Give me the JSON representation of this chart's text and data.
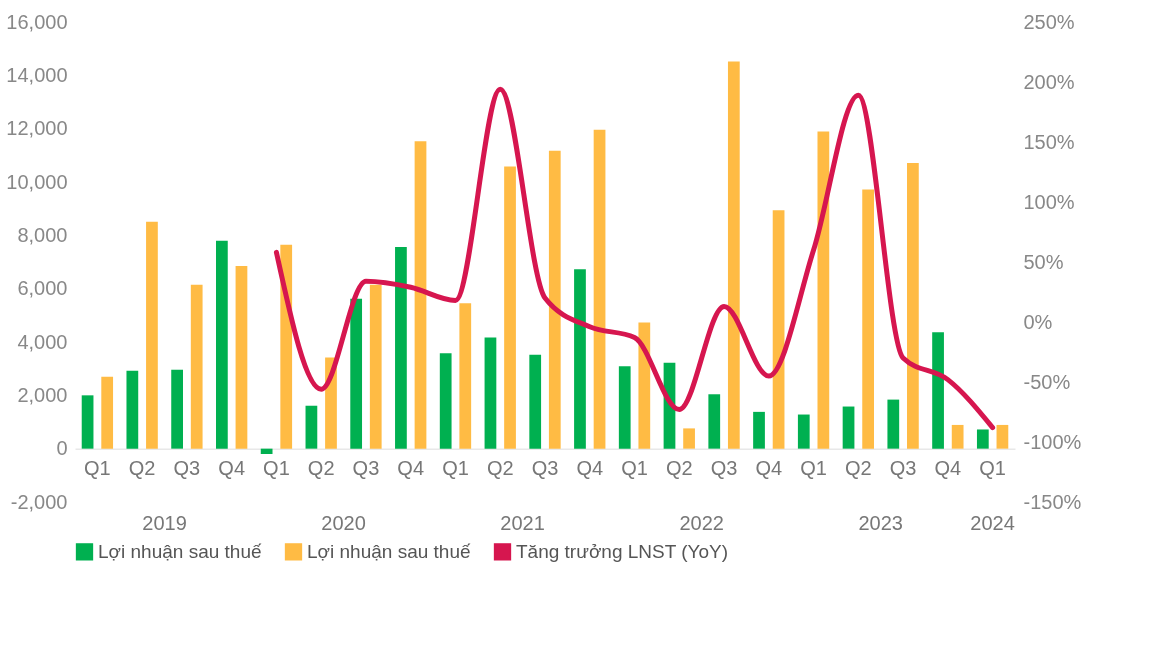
{
  "chart_data": {
    "type": "bar",
    "categories": [
      "Q1",
      "Q2",
      "Q3",
      "Q4",
      "Q1",
      "Q2",
      "Q3",
      "Q4",
      "Q1",
      "Q2",
      "Q3",
      "Q4",
      "Q1",
      "Q2",
      "Q3",
      "Q4",
      "Q1",
      "Q2",
      "Q3",
      "Q4",
      "Q1"
    ],
    "annotations": [
      "2019",
      "2020",
      "2021",
      "2022",
      "2023",
      "2024"
    ],
    "series": [
      {
        "name": "Lợi nhuận sau thuế",
        "color": "#00b050",
        "values": [
          2000,
          2920,
          2960,
          7800,
          -200,
          1610,
          5620,
          7560,
          3580,
          4170,
          3520,
          6730,
          3090,
          3220,
          2040,
          1380,
          1280,
          1580,
          1840,
          4370,
          720
        ]
      },
      {
        "name": "Lợi nhuận sau thuế",
        "color": "#ffbb44",
        "values": [
          2700,
          8510,
          6150,
          6850,
          7650,
          3420,
          6150,
          11530,
          5450,
          10580,
          11170,
          11960,
          4730,
          760,
          14520,
          8940,
          11890,
          9720,
          10710,
          890,
          890
        ]
      },
      {
        "name": "Tăng trưởng LNST (YoY)",
        "type": "line",
        "axis": "y2",
        "color": "#d6164f",
        "values": [
          null,
          null,
          null,
          null,
          58,
          -56,
          34,
          29,
          18,
          194,
          20,
          -4,
          -13,
          -73,
          13,
          -45,
          60,
          189,
          -30,
          -48,
          -88
        ]
      }
    ],
    "ylim": [
      -2000,
      16000
    ],
    "yticks": [
      {
        "value": -2000,
        "label": "-2,000"
      },
      0,
      {
        "value": 2000,
        "label": "2,000"
      },
      {
        "value": 4000,
        "label": "4,000"
      },
      {
        "value": 6000,
        "label": "6,000"
      },
      {
        "value": 8000,
        "label": "8,000"
      },
      {
        "value": 10000,
        "label": "10,000"
      },
      {
        "value": 12000,
        "label": "12,000"
      },
      {
        "value": 14000,
        "label": "14,000"
      },
      {
        "value": 16000,
        "label": "16,000"
      }
    ],
    "y2lim": [
      -150,
      250
    ],
    "y2ticks": [
      {
        "value": -150,
        "label": "-150%"
      },
      {
        "value": -100,
        "label": "-100%"
      },
      {
        "value": -50,
        "label": "-50%"
      },
      {
        "value": 0,
        "label": "0%"
      },
      {
        "value": 50,
        "label": "50%"
      },
      {
        "value": 100,
        "label": "100%"
      },
      {
        "value": 150,
        "label": "150%"
      },
      {
        "value": 200,
        "label": "200%"
      },
      {
        "value": 250,
        "label": "250%"
      }
    ],
    "grid": false,
    "legend": "bottom"
  }
}
